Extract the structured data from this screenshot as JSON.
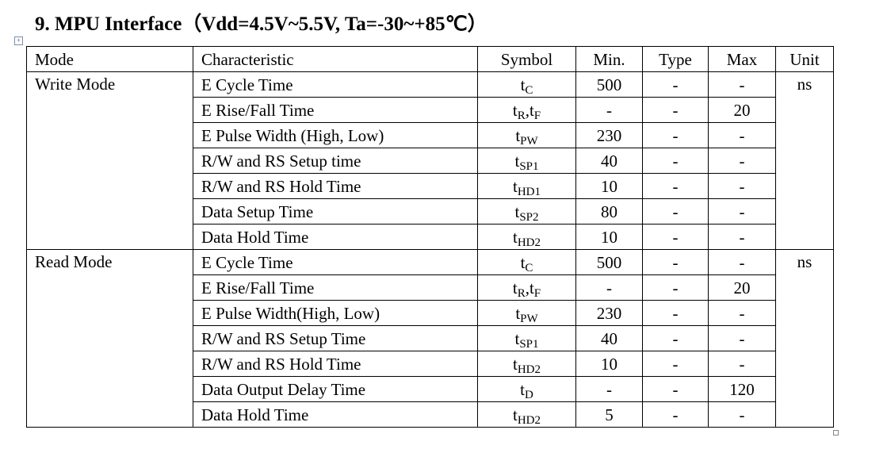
{
  "title": "9. MPU Interface（Vdd=4.5V~5.5V, Ta=-30~+85℃）",
  "header": [
    "Mode",
    "Characteristic",
    "Symbol",
    "Min.",
    "Type",
    "Max",
    "Unit"
  ],
  "groups": [
    {
      "mode": "Write Mode",
      "unit": "ns",
      "rows": [
        {
          "characteristic": "E Cycle Time",
          "symbol": [
            "t",
            "C"
          ],
          "min": 500,
          "type": "-",
          "max": "-"
        },
        {
          "characteristic": "E Rise/Fall Time",
          "symbol": [
            "t",
            "R",
            ",t",
            "F"
          ],
          "min": "-",
          "type": "-",
          "max": 20
        },
        {
          "characteristic": "E Pulse Width (High, Low)",
          "symbol": [
            "t",
            "PW"
          ],
          "min": 230,
          "type": "-",
          "max": "-"
        },
        {
          "characteristic": "R/W and RS Setup time",
          "symbol": [
            "t",
            "SP1"
          ],
          "min": 40,
          "type": "-",
          "max": "-"
        },
        {
          "characteristic": "R/W and RS Hold Time",
          "symbol": [
            "t",
            "HD1"
          ],
          "min": 10,
          "type": "-",
          "max": "-"
        },
        {
          "characteristic": "Data Setup Time",
          "symbol": [
            "t",
            "SP2"
          ],
          "min": 80,
          "type": "-",
          "max": "-"
        },
        {
          "characteristic": "Data Hold Time",
          "symbol": [
            "t",
            "HD2"
          ],
          "min": 10,
          "type": "-",
          "max": "-"
        }
      ]
    },
    {
      "mode": "Read Mode",
      "unit": "ns",
      "rows": [
        {
          "characteristic": "E Cycle Time",
          "symbol": [
            "t",
            "C"
          ],
          "min": 500,
          "type": "-",
          "max": "-"
        },
        {
          "characteristic": "E Rise/Fall Time",
          "symbol": [
            "t",
            "R",
            ",t",
            "F"
          ],
          "min": "-",
          "type": "-",
          "max": 20
        },
        {
          "characteristic": "E Pulse Width(High, Low)",
          "symbol": [
            "t",
            "PW"
          ],
          "min": 230,
          "type": "-",
          "max": "-"
        },
        {
          "characteristic": "R/W and RS Setup Time",
          "symbol": [
            "t",
            "SP1"
          ],
          "min": 40,
          "type": "-",
          "max": "-"
        },
        {
          "characteristic": "R/W and RS Hold Time",
          "symbol": [
            "t",
            "HD2"
          ],
          "min": 10,
          "type": "-",
          "max": "-"
        },
        {
          "characteristic": "Data Output Delay Time",
          "symbol": [
            "t",
            "D"
          ],
          "min": "-",
          "type": "-",
          "max": 120
        },
        {
          "characteristic": "Data Hold Time",
          "symbol": [
            "t",
            "HD2"
          ],
          "min": 5,
          "type": "-",
          "max": "-"
        }
      ]
    }
  ]
}
